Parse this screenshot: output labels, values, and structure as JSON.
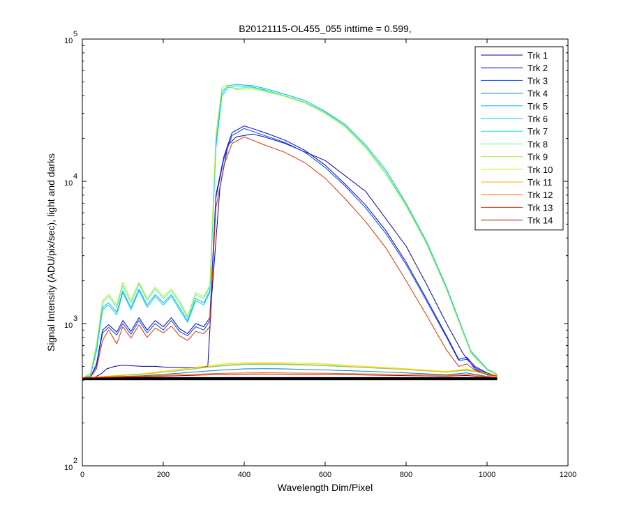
{
  "chart_data": {
    "type": "line",
    "title": "B20121115-OL455_055 inttime = 0.599,",
    "xlabel": "Wavelength Dim/Pixel",
    "ylabel": "Signal Intensity (ADU/pix/sec), light and darks",
    "xlim": [
      0,
      1200
    ],
    "ylim": [
      100,
      100000
    ],
    "yscale": "log",
    "x_ticks": [
      0,
      200,
      400,
      600,
      800,
      1000,
      1200
    ],
    "x_tick_labels": [
      "0",
      "200",
      "400",
      "600",
      "800",
      "1000",
      "1200"
    ],
    "y_ticks": [
      100,
      1000,
      10000,
      100000
    ],
    "y_tick_labels": [
      {
        "base": "10",
        "exp": "2"
      },
      {
        "base": "10",
        "exp": "3"
      },
      {
        "base": "10",
        "exp": "4"
      },
      {
        "base": "10",
        "exp": "5"
      }
    ],
    "grid": false,
    "legend_position": "top-right",
    "series": [
      {
        "name": "Trk 1",
        "color": "#0000a8",
        "values_note": "",
        "x": [
          0,
          30,
          45,
          60,
          80,
          100,
          120,
          150,
          180,
          200,
          230,
          260,
          290,
          310,
          320,
          340,
          360,
          380,
          420,
          450,
          500,
          600,
          700,
          800,
          850,
          900,
          940,
          970,
          1000,
          1025
        ],
        "y": [
          415,
          420,
          440,
          480,
          500,
          510,
          505,
          500,
          500,
          495,
          490,
          490,
          495,
          500,
          1600,
          9000,
          18000,
          20500,
          21500,
          20500,
          18500,
          14000,
          8500,
          3500,
          1900,
          1000,
          620,
          480,
          435,
          430
        ]
      },
      {
        "name": "Trk 2",
        "color": "#0000d0",
        "x": [
          0,
          20,
          35,
          50,
          65,
          85,
          100,
          120,
          140,
          160,
          180,
          200,
          220,
          240,
          260,
          280,
          300,
          315,
          330,
          350,
          370,
          400,
          420,
          450,
          500,
          550,
          600,
          650,
          700,
          750,
          800,
          850,
          900,
          930,
          950,
          970,
          1000,
          1025
        ],
        "y": [
          415,
          420,
          520,
          900,
          980,
          870,
          1050,
          880,
          1100,
          900,
          1050,
          950,
          1100,
          920,
          850,
          1000,
          950,
          1100,
          8000,
          15000,
          22000,
          24500,
          23500,
          22000,
          19500,
          16500,
          13000,
          9500,
          6800,
          4500,
          2700,
          1500,
          820,
          560,
          580,
          500,
          450,
          430
        ]
      },
      {
        "name": "Trk 3",
        "color": "#0040ff",
        "x": [
          0,
          20,
          35,
          50,
          65,
          85,
          100,
          120,
          140,
          160,
          180,
          200,
          220,
          240,
          260,
          280,
          300,
          315,
          330,
          350,
          370,
          400,
          420,
          450,
          500,
          550,
          600,
          650,
          700,
          750,
          800,
          850,
          900,
          930,
          950,
          970,
          1000,
          1025
        ],
        "y": [
          415,
          420,
          500,
          860,
          940,
          830,
          1000,
          840,
          1050,
          860,
          1000,
          900,
          1050,
          880,
          820,
          950,
          900,
          1050,
          7600,
          14500,
          21000,
          23500,
          22500,
          21000,
          18800,
          16000,
          12500,
          9200,
          6500,
          4300,
          2600,
          1450,
          800,
          550,
          560,
          490,
          445,
          430
        ]
      },
      {
        "name": "Trk 4",
        "color": "#0080c0",
        "x": [
          0,
          30,
          60,
          100,
          150,
          200,
          250,
          300,
          350,
          400,
          450,
          500,
          600,
          700,
          800,
          900,
          950,
          1000,
          1025
        ],
        "y": [
          415,
          418,
          420,
          425,
          430,
          440,
          450,
          462,
          472,
          480,
          482,
          480,
          472,
          462,
          450,
          437,
          450,
          425,
          420
        ]
      },
      {
        "name": "Trk 5",
        "color": "#00b0ff",
        "x": [
          0,
          20,
          35,
          50,
          65,
          85,
          100,
          120,
          140,
          160,
          180,
          200,
          220,
          240,
          260,
          280,
          300,
          315,
          330,
          345,
          360,
          380,
          400,
          420,
          450,
          500,
          550,
          600,
          650,
          700,
          750,
          800,
          850,
          900,
          940,
          960,
          1000,
          1025
        ],
        "y": [
          415,
          430,
          650,
          1300,
          1400,
          1200,
          1700,
          1300,
          1750,
          1350,
          1600,
          1400,
          1600,
          1300,
          1050,
          1500,
          1400,
          1700,
          18000,
          42000,
          47000,
          48000,
          47500,
          47000,
          45000,
          41000,
          37000,
          31000,
          25000,
          18000,
          12000,
          7000,
          3800,
          1800,
          900,
          640,
          480,
          440
        ]
      },
      {
        "name": "Trk 6",
        "color": "#00d0e0",
        "x": [
          0,
          20,
          35,
          50,
          65,
          85,
          100,
          120,
          140,
          160,
          180,
          200,
          220,
          240,
          260,
          280,
          300,
          315,
          330,
          345,
          360,
          380,
          400,
          420,
          450,
          500,
          550,
          600,
          650,
          700,
          750,
          800,
          850,
          900,
          940,
          960,
          1000,
          1025
        ],
        "y": [
          415,
          430,
          640,
          1250,
          1350,
          1150,
          1650,
          1250,
          1700,
          1300,
          1550,
          1350,
          1550,
          1250,
          1020,
          1450,
          1350,
          1650,
          17000,
          40000,
          45500,
          47000,
          46500,
          46000,
          44000,
          40000,
          36000,
          30500,
          24500,
          17500,
          11500,
          6800,
          3700,
          1750,
          880,
          630,
          475,
          438
        ]
      },
      {
        "name": "Trk 7",
        "color": "#20e0d0",
        "x": [
          0,
          30,
          60,
          100,
          150,
          200,
          250,
          300,
          350,
          400,
          450,
          500,
          600,
          700,
          800,
          900,
          950,
          1000,
          1025
        ],
        "y": [
          416,
          420,
          425,
          432,
          440,
          455,
          470,
          490,
          505,
          515,
          518,
          515,
          505,
          490,
          475,
          455,
          470,
          440,
          430
        ]
      },
      {
        "name": "Trk 8",
        "color": "#60f090",
        "x": [
          0,
          20,
          35,
          50,
          65,
          85,
          100,
          120,
          140,
          160,
          180,
          200,
          220,
          240,
          260,
          280,
          300,
          315,
          330,
          345,
          360,
          380,
          400,
          420,
          450,
          500,
          550,
          600,
          650,
          700,
          750,
          800,
          850,
          900,
          940,
          960,
          1000,
          1025
        ],
        "y": [
          415,
          440,
          700,
          1400,
          1550,
          1300,
          1850,
          1400,
          1900,
          1450,
          1750,
          1500,
          1700,
          1400,
          1100,
          1600,
          1500,
          1800,
          20000,
          44000,
          46000,
          45000,
          45500,
          45500,
          43500,
          40000,
          36000,
          30500,
          24500,
          17500,
          11500,
          6800,
          3700,
          1750,
          880,
          630,
          475,
          438
        ]
      },
      {
        "name": "Trk 9",
        "color": "#a0f040",
        "x": [
          0,
          20,
          35,
          50,
          65,
          85,
          100,
          120,
          140,
          160,
          180,
          200,
          220,
          240,
          260,
          280,
          300,
          315,
          330,
          345,
          360,
          380,
          400,
          420,
          450,
          500,
          550,
          600,
          650,
          700,
          750,
          800,
          850,
          900,
          940,
          960,
          1000,
          1025
        ],
        "y": [
          415,
          445,
          720,
          1450,
          1600,
          1350,
          1950,
          1450,
          1950,
          1500,
          1800,
          1550,
          1750,
          1450,
          1120,
          1650,
          1550,
          1850,
          21000,
          46000,
          47500,
          44000,
          44500,
          44500,
          43000,
          39500,
          35500,
          30000,
          24000,
          17200,
          11200,
          6700,
          3650,
          1730,
          870,
          620,
          472,
          436
        ]
      },
      {
        "name": "Trk 10",
        "color": "#e0e000",
        "x": [
          0,
          30,
          60,
          100,
          150,
          200,
          250,
          300,
          350,
          400,
          450,
          500,
          600,
          700,
          800,
          900,
          950,
          1000,
          1025
        ],
        "y": [
          417,
          421,
          427,
          435,
          445,
          462,
          480,
          500,
          520,
          530,
          532,
          530,
          520,
          500,
          482,
          460,
          480,
          445,
          432
        ]
      },
      {
        "name": "Trk 11",
        "color": "#ffb000",
        "x": [
          0,
          30,
          60,
          100,
          150,
          200,
          250,
          300,
          350,
          400,
          450,
          500,
          600,
          700,
          800,
          900,
          950,
          1000,
          1025
        ],
        "y": [
          416,
          420,
          425,
          432,
          440,
          455,
          472,
          492,
          510,
          520,
          522,
          520,
          510,
          492,
          476,
          455,
          474,
          440,
          430
        ]
      },
      {
        "name": "Trk 12",
        "color": "#ff6000",
        "x": [
          0,
          30,
          60,
          100,
          150,
          200,
          250,
          300,
          350,
          400,
          450,
          500,
          600,
          700,
          800,
          900,
          950,
          1000,
          1025
        ],
        "y": [
          415,
          418,
          421,
          424,
          428,
          433,
          438,
          443,
          447,
          450,
          451,
          450,
          447,
          443,
          439,
          433,
          440,
          425,
          420
        ]
      },
      {
        "name": "Trk 13",
        "color": "#e03000",
        "x": [
          0,
          20,
          35,
          50,
          65,
          85,
          100,
          120,
          140,
          160,
          180,
          200,
          220,
          240,
          260,
          280,
          300,
          315,
          330,
          350,
          370,
          400,
          420,
          450,
          500,
          550,
          600,
          650,
          700,
          750,
          800,
          850,
          900,
          930,
          950,
          970,
          1000,
          1025
        ],
        "y": [
          415,
          420,
          480,
          760,
          900,
          720,
          950,
          790,
          980,
          800,
          930,
          860,
          960,
          820,
          760,
          880,
          850,
          950,
          6500,
          13000,
          18500,
          20500,
          19500,
          18000,
          16000,
          13500,
          10500,
          7500,
          5200,
          3400,
          2000,
          1150,
          650,
          500,
          520,
          470,
          440,
          428
        ]
      },
      {
        "name": "Trk 14",
        "color": "#b00000",
        "x": [
          0,
          30,
          60,
          100,
          150,
          200,
          250,
          300,
          350,
          400,
          450,
          500,
          600,
          700,
          800,
          900,
          950,
          1000,
          1025
        ],
        "y": [
          414,
          416,
          418,
          420,
          423,
          427,
          431,
          435,
          439,
          441,
          442,
          441,
          439,
          435,
          431,
          427,
          432,
          420,
          418
        ]
      }
    ],
    "dark_band": {
      "name": "",
      "color": "#000000",
      "x_range": [
        0,
        1025
      ],
      "y_range": [
        400,
        420
      ]
    }
  }
}
